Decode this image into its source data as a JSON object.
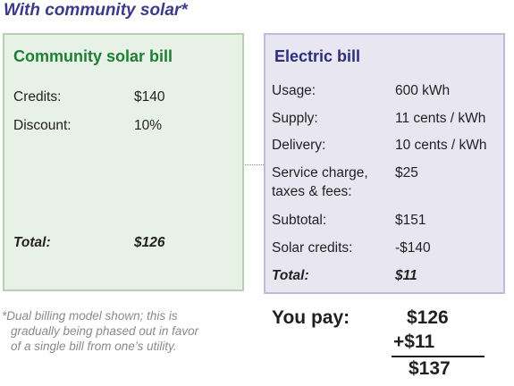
{
  "header": {
    "title": "With community solar*"
  },
  "community_solar_bill": {
    "title": "Community solar bill",
    "rows": [
      {
        "label": "Credits:",
        "value": "$140"
      },
      {
        "label": "Discount:",
        "value": "10%"
      }
    ],
    "total": {
      "label": "Total:",
      "value": "$126"
    }
  },
  "electric_bill": {
    "title": "Electric bill",
    "rows": [
      {
        "label": "Usage:",
        "value": "600 kWh"
      },
      {
        "label": "Supply:",
        "value": "11 cents / kWh"
      },
      {
        "label": "Delivery:",
        "value": "10 cents / kWh"
      },
      {
        "label_line1": "Service charge,",
        "label_line2": "taxes & fees:",
        "value": "$25"
      },
      {
        "label": "Subtotal:",
        "value": "$151"
      },
      {
        "label": "Solar credits:",
        "value": "-$140"
      }
    ],
    "total": {
      "label": "Total:",
      "value": "$11"
    }
  },
  "footnote": {
    "line1": "*Dual billing model shown; this is",
    "line2": "gradually being phased out in favor",
    "line3": "of a single bill from one’s utility."
  },
  "you_pay": {
    "label": "You pay:",
    "amount1": "$126",
    "amount2": "+$11",
    "total": "$137"
  },
  "colors": {
    "header": "#3d3a8c",
    "solar_title": "#1e7e34",
    "solar_fill": "#e8f1e6",
    "solar_border": "#b6d1b2",
    "electric_title": "#2f2c7e",
    "electric_fill": "#e7e6f1",
    "electric_border": "#bdbbdb",
    "footnote": "#8a8a8a"
  }
}
